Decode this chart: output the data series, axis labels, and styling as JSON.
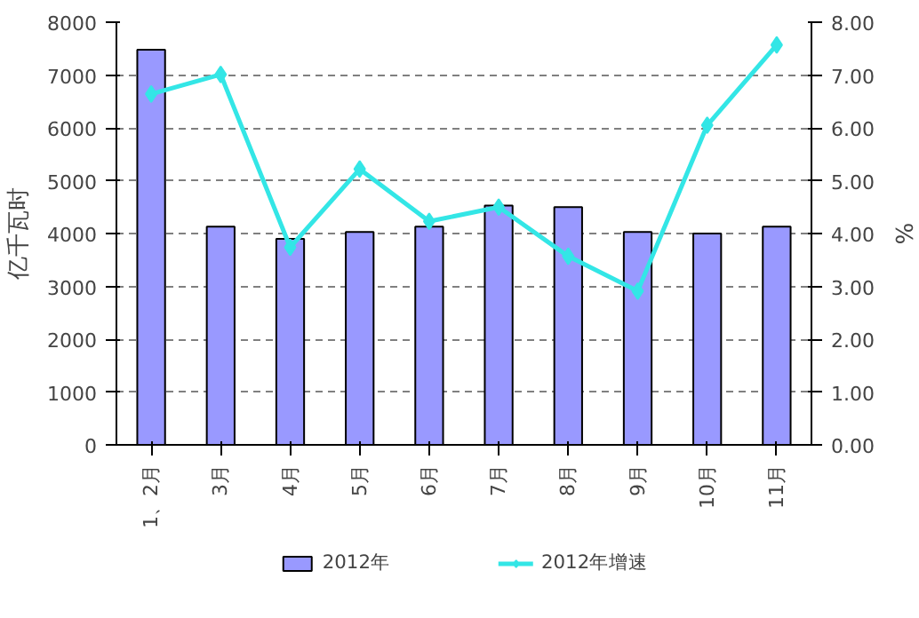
{
  "chart_data": {
    "type": "bar",
    "categories": [
      "1、2月",
      "3月",
      "4月",
      "5月",
      "6月",
      "7月",
      "8月",
      "9月",
      "10月",
      "11月"
    ],
    "ylabel": "亿千瓦时",
    "y2label": "%",
    "ylim": [
      0,
      8000
    ],
    "yticks": [
      0,
      1000,
      2000,
      3000,
      4000,
      5000,
      6000,
      7000,
      8000
    ],
    "y2lim": [
      0,
      8
    ],
    "y2ticks": [
      {
        "value": 0,
        "label": "0.00"
      },
      {
        "value": 1,
        "label": "1.00"
      },
      {
        "value": 2,
        "label": "2.00"
      },
      {
        "value": 3,
        "label": "3.00"
      },
      {
        "value": 4,
        "label": "4.00"
      },
      {
        "value": 5,
        "label": "5.00"
      },
      {
        "value": 6,
        "label": "6.00"
      },
      {
        "value": 7,
        "label": "7.00"
      },
      {
        "value": 8,
        "label": "8.00"
      }
    ],
    "grid": "y",
    "legend": "bottom",
    "series": [
      {
        "name": "2012年",
        "color": "#9999ff",
        "values": [
          7480,
          4130,
          3900,
          4030,
          4130,
          4530,
          4500,
          4030,
          4000,
          4130
        ]
      },
      {
        "name": "2012年增速",
        "type": "line",
        "axis": "y2",
        "marker": "diamond",
        "color": "#33e6e6",
        "values": [
          6.64,
          7.01,
          3.74,
          5.22,
          4.23,
          4.5,
          3.57,
          2.91,
          6.05,
          7.57
        ]
      }
    ]
  }
}
